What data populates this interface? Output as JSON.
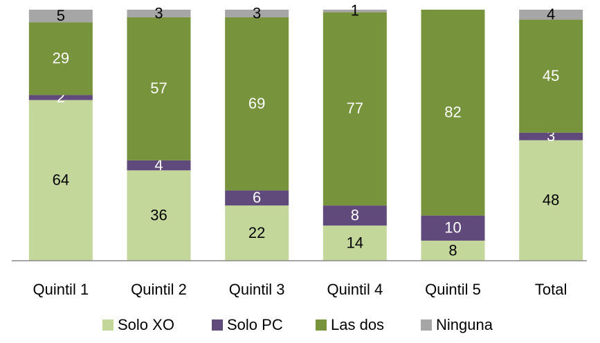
{
  "chart_data": {
    "type": "stacked_bar",
    "categories": [
      "Quintil 1",
      "Quintil 2",
      "Quintil 3",
      "Quintil 4",
      "Quintil 5",
      "Total"
    ],
    "series": [
      {
        "name": "Solo XO",
        "color": "#c4d79b",
        "label_color": "#000000",
        "values": [
          64,
          36,
          22,
          14,
          8,
          48
        ]
      },
      {
        "name": "Solo PC",
        "color": "#604a7b",
        "label_color": "#ffffff",
        "values": [
          2,
          4,
          6,
          8,
          10,
          3
        ]
      },
      {
        "name": "Las dos",
        "color": "#77933c",
        "label_color": "#ffffff",
        "values": [
          29,
          57,
          69,
          77,
          82,
          45
        ]
      },
      {
        "name": "Ninguna",
        "color": "#a6a6a6",
        "label_color": "#000000",
        "values": [
          5,
          3,
          3,
          1,
          0,
          4
        ]
      }
    ],
    "ylim": [
      0,
      100
    ],
    "legend": "bottom"
  }
}
